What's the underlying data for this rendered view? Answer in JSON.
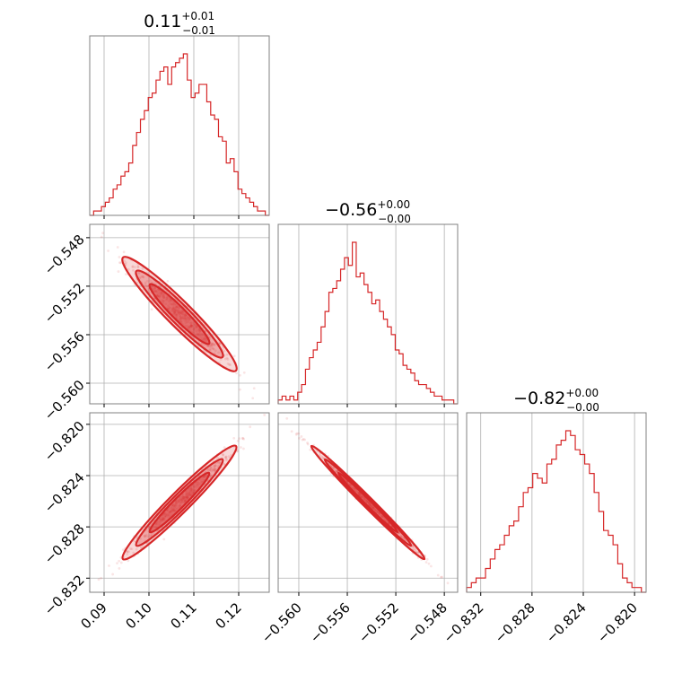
{
  "chart_data": {
    "type": "corner",
    "color": "#d62728",
    "grid": true,
    "params": [
      {
        "title_value": "0.11",
        "title_plus": "+0.01",
        "title_minus": "−0.01",
        "range": [
          0.0868,
          0.1268
        ],
        "ticks": [
          0.09,
          0.1,
          0.11,
          0.12
        ],
        "tick_labels": [
          "0.09",
          "0.10",
          "0.11",
          "0.12"
        ]
      },
      {
        "title_value": "−0.56",
        "title_plus": "+0.00",
        "title_minus": "−0.00",
        "range": [
          -0.5617,
          -0.5469
        ],
        "ticks": [
          -0.56,
          -0.556,
          -0.552,
          -0.548
        ],
        "tick_labels": [
          "−0.560",
          "−0.556",
          "−0.552",
          "−0.548"
        ]
      },
      {
        "title_value": "−0.82",
        "title_plus": "+0.00",
        "title_minus": "−0.00",
        "range": [
          -0.8331,
          -0.8191
        ],
        "ticks": [
          -0.832,
          -0.828,
          -0.824,
          -0.82
        ],
        "tick_labels": [
          "−0.832",
          "−0.828",
          "−0.824",
          "−0.820"
        ]
      }
    ],
    "histograms": [
      {
        "param": 0,
        "counts": [
          0,
          1,
          1,
          2,
          3,
          4,
          6,
          7,
          9,
          10,
          12,
          16,
          19,
          22,
          24,
          27,
          28,
          31,
          33,
          34,
          30,
          34,
          35,
          36,
          37,
          31,
          27,
          28,
          30,
          30,
          26,
          23,
          22,
          18,
          17,
          12,
          13,
          10,
          6,
          5,
          4,
          3,
          2,
          1,
          1,
          0
        ]
      },
      {
        "param": 1,
        "counts": [
          1,
          2,
          1,
          2,
          1,
          3,
          5,
          9,
          12,
          14,
          16,
          20,
          24,
          29,
          30,
          32,
          35,
          38,
          36,
          42,
          33,
          34,
          31,
          29,
          26,
          27,
          24,
          22,
          20,
          18,
          14,
          13,
          10,
          9,
          8,
          6,
          5,
          5,
          4,
          3,
          2,
          2,
          1,
          1,
          1,
          0
        ]
      },
      {
        "param": 2,
        "counts": [
          1,
          2,
          3,
          3,
          5,
          7,
          9,
          10,
          12,
          14,
          15,
          18,
          21,
          22,
          25,
          24,
          23,
          27,
          28,
          31,
          32,
          34,
          33,
          30,
          29,
          27,
          25,
          21,
          17,
          13,
          12,
          10,
          6,
          3,
          2,
          1,
          1,
          0
        ]
      }
    ],
    "panels_2d": [
      {
        "x_param": 0,
        "y_param": 1,
        "relation": "negative",
        "correlation": -0.97
      },
      {
        "x_param": 0,
        "y_param": 2,
        "relation": "positive",
        "correlation": 0.98
      },
      {
        "x_param": 1,
        "y_param": 2,
        "relation": "negative",
        "correlation": -0.995
      }
    ]
  }
}
